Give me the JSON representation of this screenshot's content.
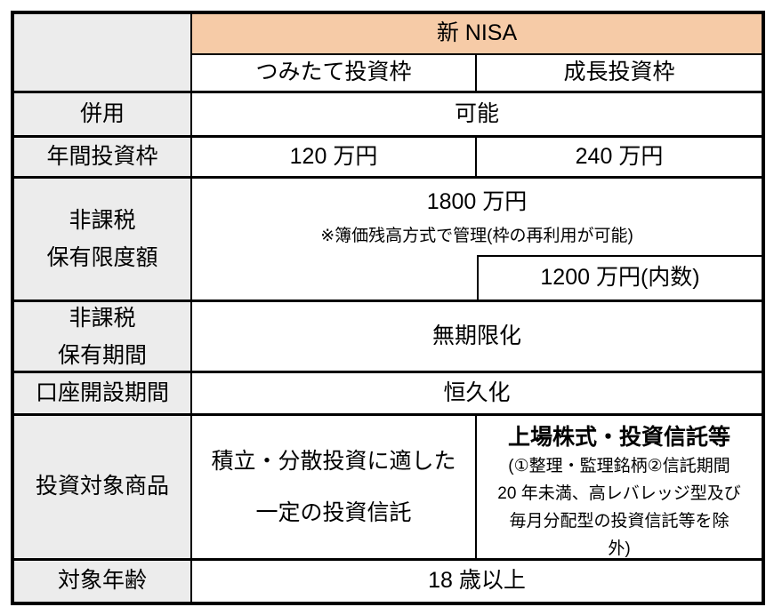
{
  "colors": {
    "header-bg": "#F6CBA7",
    "label-bg": "#ECECEC",
    "border": "#000000",
    "cell-bg": "#FFFFFF",
    "text": "#000000"
  },
  "table": {
    "header": {
      "title": "新 NISA",
      "subcol1": "つみたて投資枠",
      "subcol2": "成長投資枠"
    },
    "combine": {
      "label": "併用",
      "value": "可能"
    },
    "annual": {
      "label": "年間投資枠",
      "tsumitate": "120 万円",
      "growth": "240 万円"
    },
    "limit": {
      "label1": "非課税",
      "label2": "保有限度額",
      "total": "1800 万円",
      "note": "※簿価残高方式で管理(枠の再利用が可能)",
      "growth_inner": "1200 万円(内数)"
    },
    "period": {
      "label1": "非課税",
      "label2": "保有期間",
      "value": "無期限化"
    },
    "account": {
      "label": "口座開設期間",
      "value": "恒久化"
    },
    "products": {
      "label": "投資対象商品",
      "tsumitate1": "積立・分散投資に適した",
      "tsumitate2": "一定の投資信託",
      "growth_title": "上場株式・投資信託等",
      "growth_note1": "(①整理・監理銘柄②信託期間",
      "growth_note2": "20 年未満、高レバレッジ型及び",
      "growth_note3": "毎月分配型の投資信託等を除",
      "growth_note4": "外)"
    },
    "age": {
      "label": "対象年齢",
      "value": "18 歳以上"
    }
  }
}
